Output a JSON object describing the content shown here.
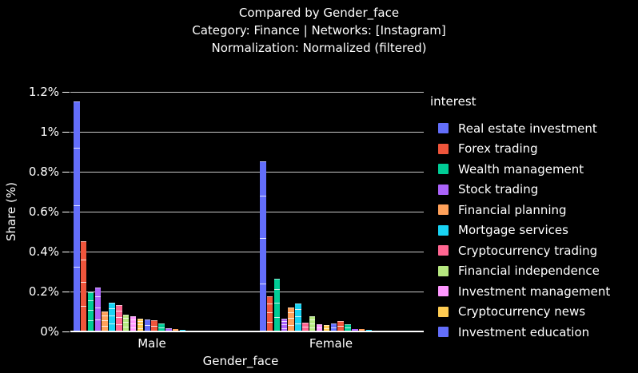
{
  "title": {
    "line1": "Compared by Gender_face",
    "line2": "Category: Finance | Networks: [Instagram]",
    "line3": "Normalization: Normalized (filtered)"
  },
  "axes": {
    "x_title": "Gender_face",
    "y_title": "Share (%)",
    "x_categories": [
      "Male",
      "Female"
    ],
    "y_tick_labels": [
      "0%",
      "0.2%",
      "0.4%",
      "0.6%",
      "0.8%",
      "1%",
      "1.2%"
    ],
    "y_tick_values": [
      0,
      0.2,
      0.4,
      0.6,
      0.8,
      1,
      1.2
    ]
  },
  "legend": {
    "title": "interest",
    "items": [
      {
        "label": "Real estate investment",
        "color": "#636EFA"
      },
      {
        "label": "Forex trading",
        "color": "#EF553B"
      },
      {
        "label": "Wealth management",
        "color": "#00CC96"
      },
      {
        "label": "Stock trading",
        "color": "#AB63FA"
      },
      {
        "label": "Financial planning",
        "color": "#FFA15A"
      },
      {
        "label": "Mortgage services",
        "color": "#19D3F3"
      },
      {
        "label": "Cryptocurrency trading",
        "color": "#FF6692"
      },
      {
        "label": "Financial independence",
        "color": "#B6E880"
      },
      {
        "label": "Investment management",
        "color": "#FF97FF"
      },
      {
        "label": "Cryptocurrency news",
        "color": "#FECB52"
      },
      {
        "label": "Investment education",
        "color": "#636EFA"
      }
    ]
  },
  "colors": {
    "background": "#000000",
    "text": "#ffffff",
    "gridline": "#c9c9c9",
    "axis_line": "#ffffff"
  },
  "chart_data": {
    "type": "bar",
    "mode": "grouped",
    "segmented_bars": true,
    "title": "Compared by Gender_face",
    "xlabel": "Gender_face",
    "ylabel": "Share (%)",
    "unit": "percent",
    "ylim": [
      0,
      1.2
    ],
    "grid": true,
    "legend_position": "right",
    "categories": [
      "Male",
      "Female"
    ],
    "series": [
      {
        "name": "Real estate investment",
        "color": "#636EFA",
        "values": [
          1.15,
          0.85
        ]
      },
      {
        "name": "Forex trading",
        "color": "#EF553B",
        "values": [
          0.45,
          0.175
        ]
      },
      {
        "name": "Wealth management",
        "color": "#00CC96",
        "values": [
          0.195,
          0.265
        ]
      },
      {
        "name": "Stock trading",
        "color": "#AB63FA",
        "values": [
          0.22,
          0.065
        ]
      },
      {
        "name": "Financial planning",
        "color": "#FFA15A",
        "values": [
          0.1,
          0.12
        ]
      },
      {
        "name": "Mortgage services",
        "color": "#19D3F3",
        "values": [
          0.145,
          0.14
        ]
      },
      {
        "name": "Cryptocurrency trading",
        "color": "#FF6692",
        "values": [
          0.13,
          0.045
        ]
      },
      {
        "name": "Financial independence",
        "color": "#B6E880",
        "values": [
          0.085,
          0.075
        ]
      },
      {
        "name": "Investment management",
        "color": "#FF97FF",
        "values": [
          0.075,
          0.035
        ]
      },
      {
        "name": "Cryptocurrency news",
        "color": "#FECB52",
        "values": [
          0.064,
          0.03
        ]
      },
      {
        "name": "Investment education",
        "color": "#636EFA",
        "values": [
          0.06,
          0.04
        ]
      }
    ],
    "unlabeled_tail_series": [
      {
        "name": "",
        "color": "#EF553B",
        "values": [
          0.055,
          0.05
        ]
      },
      {
        "name": "",
        "color": "#00CC96",
        "values": [
          0.038,
          0.035
        ]
      },
      {
        "name": "",
        "color": "#AB63FA",
        "values": [
          0.014,
          0.012
        ]
      },
      {
        "name": "",
        "color": "#FFA15A",
        "values": [
          0.01,
          0.01
        ]
      },
      {
        "name": "",
        "color": "#19D3F3",
        "values": [
          0.008,
          0.008
        ]
      },
      {
        "name": "",
        "color": "#FF6692",
        "values": [
          0.005,
          0.005
        ]
      },
      {
        "name": "",
        "color": "#B6E880",
        "values": [
          0.003,
          0.003
        ]
      }
    ]
  }
}
